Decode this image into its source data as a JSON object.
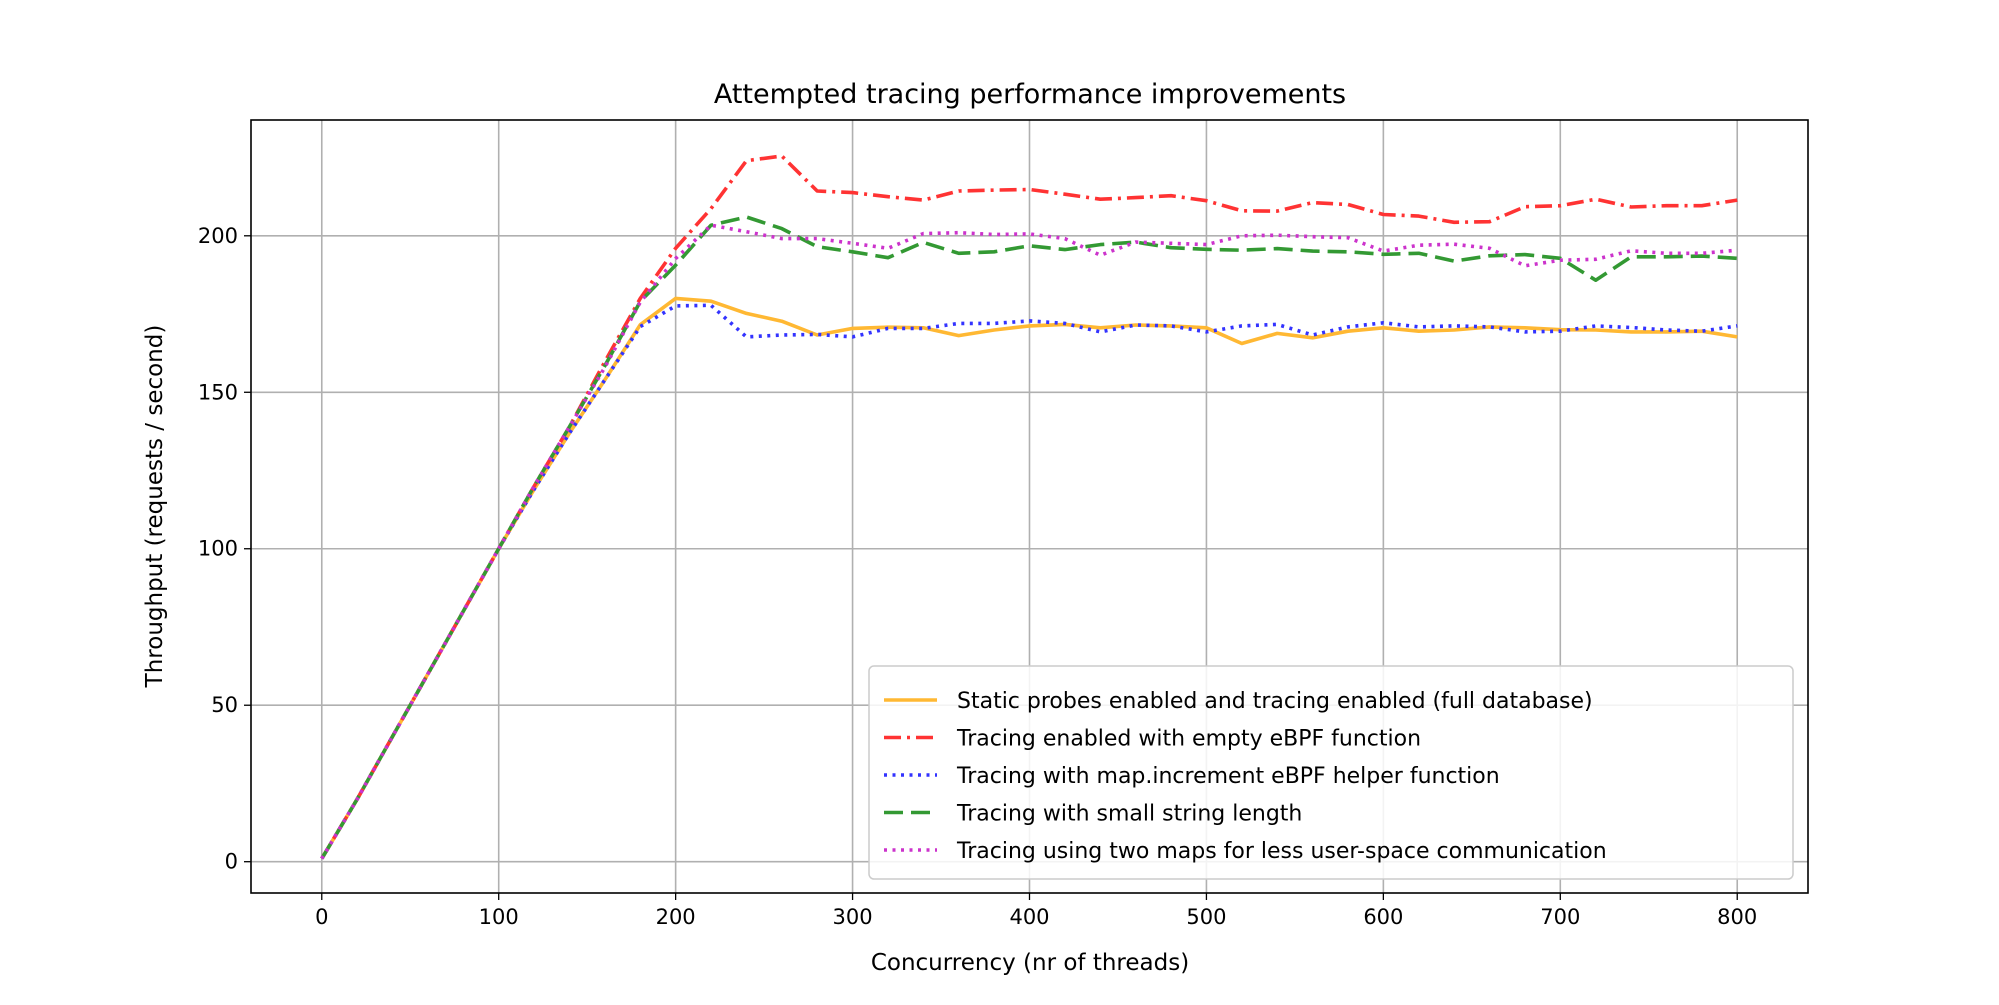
{
  "chart_data": {
    "type": "line",
    "title": "Attempted tracing performance improvements",
    "xlabel": "Concurrency (nr of threads)",
    "ylabel": "Throughput (requests / second)",
    "xlim": [
      -40,
      840
    ],
    "ylim": [
      -10,
      237
    ],
    "xticks": [
      0,
      100,
      200,
      300,
      400,
      500,
      600,
      700,
      800
    ],
    "yticks": [
      0,
      50,
      100,
      150,
      200
    ],
    "grid": true,
    "legend_position": "lower-right",
    "x": [
      0,
      20,
      40,
      60,
      80,
      100,
      120,
      140,
      160,
      180,
      200,
      220,
      240,
      260,
      280,
      300,
      320,
      340,
      360,
      380,
      400,
      420,
      440,
      460,
      480,
      500,
      520,
      540,
      560,
      580,
      600,
      620,
      640,
      660,
      680,
      700,
      720,
      740,
      760,
      780,
      800
    ],
    "series": [
      {
        "name": "Static probes enabled and tracing enabled (full database)",
        "color": "#ffb833",
        "style": "solid",
        "values": [
          1,
          20,
          40,
          60,
          80,
          100,
          119,
          137,
          154,
          171.6,
          180,
          179.1,
          175.2,
          172.7,
          168.3,
          170.4,
          170.8,
          170.6,
          168.1,
          169.9,
          171.2,
          171.7,
          170.6,
          171.5,
          171.2,
          170.6,
          165.6,
          168.8,
          167.4,
          169.5,
          170.6,
          169.5,
          169.9,
          170.9,
          170.6,
          170,
          169.9,
          169.3,
          169.3,
          169.5,
          167.7
        ]
      },
      {
        "name": "Tracing enabled with empty eBPF function",
        "color": "#ff3333",
        "style": "dashdot",
        "values": [
          1,
          20,
          40,
          60,
          80,
          100,
          120,
          139,
          159.8,
          180,
          196,
          208.7,
          224,
          225.5,
          214.3,
          213.8,
          212.5,
          211.4,
          214.3,
          214.6,
          214.8,
          213.3,
          211.7,
          212.2,
          212.8,
          211.2,
          208,
          207.9,
          210.6,
          210,
          206.8,
          206.3,
          204.3,
          204.5,
          209.3,
          209.6,
          211.7,
          209.2,
          209.6,
          209.6,
          211.4
        ]
      },
      {
        "name": "Tracing with map.increment eBPF helper function",
        "color": "#3333ff",
        "style": "dotted",
        "values": [
          1,
          20,
          40,
          60,
          80,
          100,
          119,
          137,
          154,
          171,
          177.6,
          177.8,
          167.7,
          168.3,
          168.5,
          167.7,
          170.4,
          170.4,
          172,
          172,
          172.8,
          172,
          169.3,
          171.5,
          171.2,
          169.3,
          171.2,
          171.7,
          168.3,
          170.9,
          172.2,
          170.9,
          171.2,
          170.9,
          169.3,
          169.5,
          171.2,
          170.7,
          169.9,
          169.5,
          171.2
        ]
      },
      {
        "name": "Tracing with small string length",
        "color": "#339933",
        "style": "dashed",
        "values": [
          1,
          20,
          40,
          60,
          80,
          100,
          120,
          139,
          158.5,
          179,
          190.6,
          203.4,
          206,
          202.3,
          196.5,
          194.9,
          193,
          197.9,
          194.4,
          194.9,
          196.8,
          195.6,
          197.2,
          198,
          196.2,
          195.7,
          195.4,
          195.9,
          195.1,
          194.9,
          194.1,
          194.4,
          191.9,
          193.6,
          194,
          192.8,
          185.8,
          193.3,
          193.3,
          193.5,
          192.8
        ]
      },
      {
        "name": "Tracing using two maps for less user-space communication",
        "color": "#cc33cc",
        "style": "dotted",
        "values": [
          1,
          20,
          40,
          60,
          80,
          100,
          120,
          139,
          158,
          178.8,
          192.7,
          203.4,
          201.3,
          199.1,
          199.1,
          197.6,
          196,
          200.7,
          201,
          200.4,
          200.6,
          199.1,
          193.8,
          198,
          197.6,
          197.2,
          200,
          200.2,
          199.7,
          199.4,
          195.1,
          197,
          197.3,
          196,
          190.4,
          192.2,
          192.5,
          195.2,
          194.4,
          194.4,
          195.4
        ]
      }
    ]
  }
}
